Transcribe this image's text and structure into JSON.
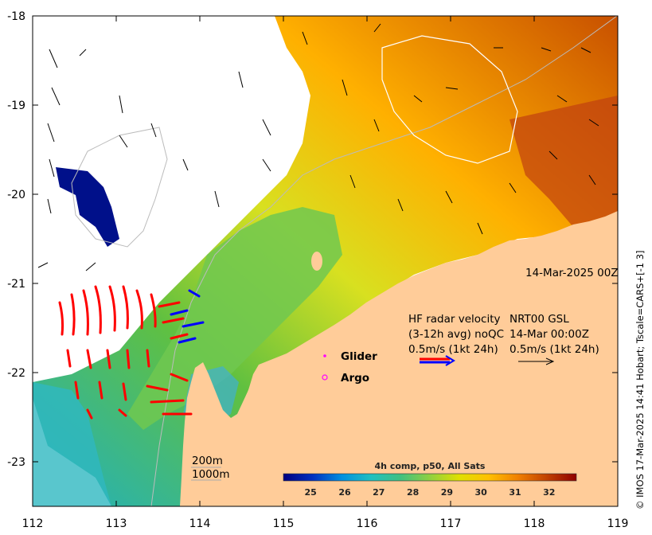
{
  "map": {
    "title_datetime": "14-Mar-2025 00Z",
    "x_ticks": [
      "112",
      "113",
      "114",
      "115",
      "116",
      "117",
      "118",
      "119"
    ],
    "y_ticks": [
      "-18",
      "-19",
      "-20",
      "-21",
      "-22",
      "-23"
    ],
    "x_range": [
      112,
      119
    ],
    "y_range": [
      -23.5,
      -18
    ]
  },
  "legend": {
    "hf_line1": "HF radar velocity",
    "hf_line2": "(3-12h avg) noQC",
    "hf_line3": "0.5m/s (1kt 24h)",
    "nrt_line1": "NRT00 GSL",
    "nrt_line2": "14-Mar 00:00Z",
    "nrt_line3": "0.5m/s (1kt 24h)",
    "glider": "Glider",
    "argo": "Argo",
    "glider_color": "#ff00ff",
    "argo_color": "#ff00ff"
  },
  "isobaths": {
    "shallow": "200m",
    "deep": "1000m"
  },
  "colorbar": {
    "title": "4h comp, p50, All Sats",
    "range": [
      24.2,
      32.8
    ],
    "tick_labels": [
      "25",
      "26",
      "27",
      "28",
      "29",
      "30",
      "31",
      "32"
    ],
    "colors": [
      "#000080",
      "#0030c0",
      "#0090e0",
      "#20c0c0",
      "#40c080",
      "#90d040",
      "#e0e000",
      "#ffc000",
      "#f08000",
      "#c04000",
      "#900000"
    ]
  },
  "credit": "© IMOS 17-Mar-2025 14:41 Hobart; Tscale=CARS+[-1 3]",
  "colors": {
    "land": "#ffcc99",
    "hf_radar": "#ff0000",
    "hf_radar_alt": "#0000ff",
    "no_data": "#ffffff"
  }
}
